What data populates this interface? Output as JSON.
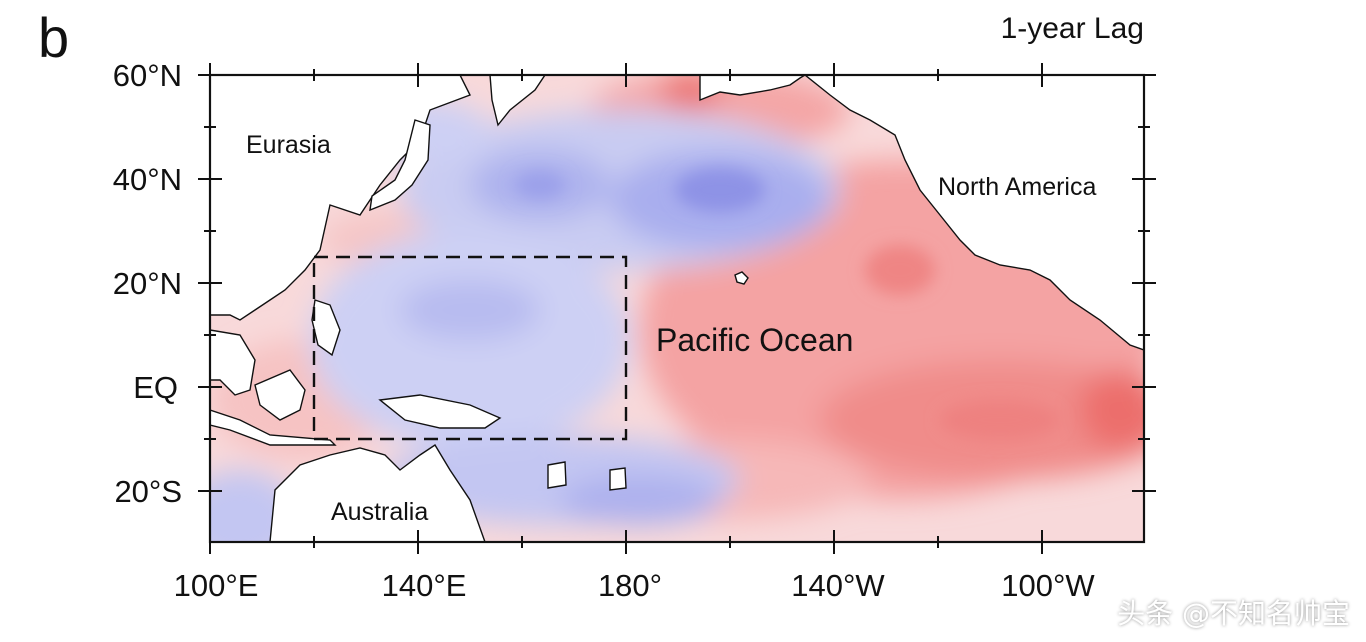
{
  "figure": {
    "panel_label": "b",
    "title": "1-year Lag",
    "watermark": "头条 @不知名帅宝"
  },
  "map": {
    "lat_labels": [
      "60°N",
      "40°N",
      "20°N",
      "EQ",
      "20°S"
    ],
    "lon_labels": [
      "100°E",
      "140°E",
      "180°",
      "140°W",
      "100°W"
    ],
    "regions": {
      "eurasia": "Eurasia",
      "north_america": "North America",
      "pacific": "Pacific Ocean",
      "australia": "Australia"
    },
    "extent": {
      "lon": [
        100,
        280
      ],
      "lat": [
        -30,
        60
      ]
    },
    "box": {
      "lon": [
        120,
        180
      ],
      "lat": [
        -10,
        25
      ]
    },
    "colors": {
      "positive": "#f07a78",
      "negative": "#7f85e0",
      "neutral": "#f7f7fb",
      "land": "#ffffff"
    }
  }
}
